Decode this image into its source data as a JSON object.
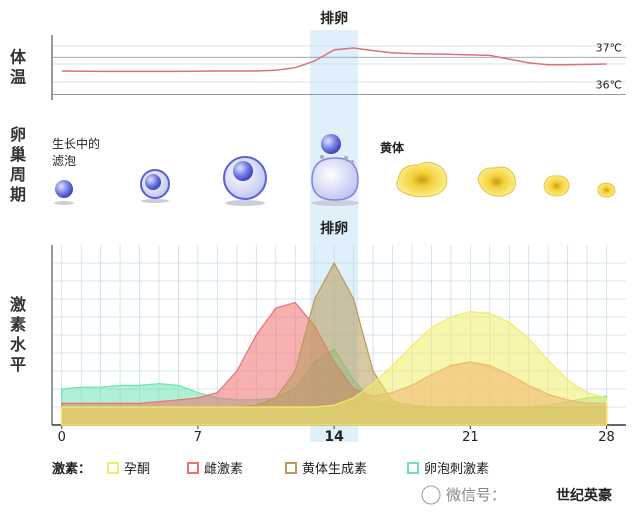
{
  "chart_data": [
    {
      "type": "line",
      "title": "排卵",
      "y_label": "体温",
      "highlight_x": 14,
      "x": [
        0,
        2,
        4,
        6,
        8,
        10,
        11,
        12,
        13,
        14,
        15,
        16,
        17,
        18,
        20,
        22,
        23,
        24,
        25,
        26,
        28
      ],
      "series": [
        {
          "name": "体温",
          "color": "#d9737a",
          "values": [
            36.63,
            36.62,
            36.62,
            36.62,
            36.63,
            36.63,
            36.65,
            36.72,
            36.9,
            37.2,
            37.25,
            37.18,
            37.12,
            37.1,
            37.08,
            37.05,
            36.95,
            36.85,
            36.8,
            36.8,
            36.82
          ]
        }
      ],
      "xlim": [
        -0.5,
        29
      ],
      "ylim": [
        35.85,
        37.6
      ],
      "yticks": [
        {
          "value": 37,
          "label": "37℃"
        },
        {
          "value": 36,
          "label": "36℃"
        }
      ]
    },
    {
      "type": "area",
      "title": "排卵",
      "y_label": "激素水平",
      "legend_title": "激素：",
      "highlight_x": 14,
      "x": [
        0,
        1,
        2,
        3,
        4,
        5,
        6,
        7,
        8,
        9,
        10,
        11,
        12,
        13,
        14,
        15,
        16,
        17,
        18,
        19,
        20,
        21,
        22,
        23,
        24,
        25,
        26,
        27,
        28
      ],
      "series": [
        {
          "name": "卵泡刺激素",
          "color": "#6ee3b0",
          "values": [
            2,
            2.1,
            2.1,
            2.2,
            2.2,
            2.3,
            2.2,
            1.8,
            1.5,
            1.4,
            1.4,
            1.5,
            2,
            3.5,
            4.2,
            2.5,
            1.3,
            1.1,
            1,
            1,
            1,
            1,
            1,
            1,
            1,
            1.1,
            1.3,
            1.5,
            1.6
          ]
        },
        {
          "name": "雌激素",
          "color": "#f07070",
          "values": [
            1.2,
            1.2,
            1.2,
            1.2,
            1.2,
            1.3,
            1.4,
            1.5,
            1.8,
            3,
            5,
            6.5,
            6.8,
            5.5,
            3.5,
            2,
            1.6,
            1.8,
            2.2,
            2.8,
            3.3,
            3.5,
            3.3,
            2.8,
            2.2,
            1.7,
            1.4,
            1.2,
            1.2
          ]
        },
        {
          "name": "黄体生成素",
          "color": "#b89a5a",
          "values": [
            1,
            1,
            1,
            1,
            1,
            1,
            1,
            1,
            1,
            1,
            1.1,
            1.5,
            3,
            7,
            9,
            7,
            3,
            1.3,
            1.1,
            1,
            1,
            1,
            1,
            1,
            1,
            1,
            1,
            1,
            1
          ]
        },
        {
          "name": "孕酮",
          "color": "#f2ec6a",
          "values": [
            1,
            1,
            1,
            1,
            1,
            1,
            1,
            1,
            1,
            1,
            1,
            1,
            1,
            1,
            1.1,
            1.5,
            2.3,
            3.3,
            4.4,
            5.4,
            6,
            6.3,
            6.2,
            5.7,
            4.8,
            3.6,
            2.5,
            1.8,
            1.5
          ]
        }
      ],
      "xlim": [
        -0.5,
        29
      ],
      "ylim": [
        0,
        10
      ],
      "xticks": [
        0,
        7,
        14,
        21,
        28
      ]
    }
  ],
  "ovary": {
    "label": "卵巢周期",
    "growing": "生长中的\n滤泡",
    "corpus": "黄体"
  },
  "watermark": {
    "prefix": "微信号：",
    "name": "世纪英豪"
  }
}
